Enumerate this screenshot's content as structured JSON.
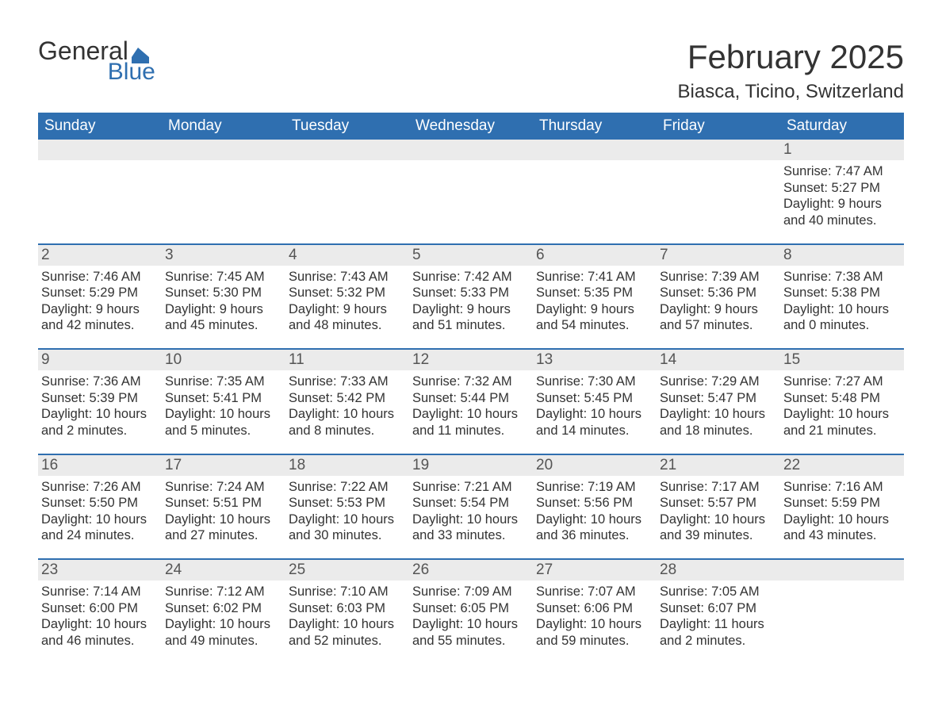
{
  "logo": {
    "word1": "General",
    "word2": "Blue",
    "brand_color": "#2f6fb0"
  },
  "title": "February 2025",
  "location": "Biasca, Ticino, Switzerland",
  "colors": {
    "header_bg": "#2f6fb0",
    "header_text": "#ffffff",
    "daynum_bg": "#ebebeb",
    "rule": "#2f6fb0",
    "body_text": "#333333"
  },
  "typography": {
    "title_fontsize": 42,
    "location_fontsize": 24,
    "dayhead_fontsize": 19,
    "daynum_fontsize": 19,
    "cell_fontsize": 16.5,
    "font_family": "Arial"
  },
  "day_headers": [
    "Sunday",
    "Monday",
    "Tuesday",
    "Wednesday",
    "Thursday",
    "Friday",
    "Saturday"
  ],
  "weeks": [
    [
      {
        "blank": true
      },
      {
        "blank": true
      },
      {
        "blank": true
      },
      {
        "blank": true
      },
      {
        "blank": true
      },
      {
        "blank": true
      },
      {
        "n": "1",
        "sunrise": "Sunrise: 7:47 AM",
        "sunset": "Sunset: 5:27 PM",
        "daylight": "Daylight: 9 hours and 40 minutes."
      }
    ],
    [
      {
        "n": "2",
        "sunrise": "Sunrise: 7:46 AM",
        "sunset": "Sunset: 5:29 PM",
        "daylight": "Daylight: 9 hours and 42 minutes."
      },
      {
        "n": "3",
        "sunrise": "Sunrise: 7:45 AM",
        "sunset": "Sunset: 5:30 PM",
        "daylight": "Daylight: 9 hours and 45 minutes."
      },
      {
        "n": "4",
        "sunrise": "Sunrise: 7:43 AM",
        "sunset": "Sunset: 5:32 PM",
        "daylight": "Daylight: 9 hours and 48 minutes."
      },
      {
        "n": "5",
        "sunrise": "Sunrise: 7:42 AM",
        "sunset": "Sunset: 5:33 PM",
        "daylight": "Daylight: 9 hours and 51 minutes."
      },
      {
        "n": "6",
        "sunrise": "Sunrise: 7:41 AM",
        "sunset": "Sunset: 5:35 PM",
        "daylight": "Daylight: 9 hours and 54 minutes."
      },
      {
        "n": "7",
        "sunrise": "Sunrise: 7:39 AM",
        "sunset": "Sunset: 5:36 PM",
        "daylight": "Daylight: 9 hours and 57 minutes."
      },
      {
        "n": "8",
        "sunrise": "Sunrise: 7:38 AM",
        "sunset": "Sunset: 5:38 PM",
        "daylight": "Daylight: 10 hours and 0 minutes."
      }
    ],
    [
      {
        "n": "9",
        "sunrise": "Sunrise: 7:36 AM",
        "sunset": "Sunset: 5:39 PM",
        "daylight": "Daylight: 10 hours and 2 minutes."
      },
      {
        "n": "10",
        "sunrise": "Sunrise: 7:35 AM",
        "sunset": "Sunset: 5:41 PM",
        "daylight": "Daylight: 10 hours and 5 minutes."
      },
      {
        "n": "11",
        "sunrise": "Sunrise: 7:33 AM",
        "sunset": "Sunset: 5:42 PM",
        "daylight": "Daylight: 10 hours and 8 minutes."
      },
      {
        "n": "12",
        "sunrise": "Sunrise: 7:32 AM",
        "sunset": "Sunset: 5:44 PM",
        "daylight": "Daylight: 10 hours and 11 minutes."
      },
      {
        "n": "13",
        "sunrise": "Sunrise: 7:30 AM",
        "sunset": "Sunset: 5:45 PM",
        "daylight": "Daylight: 10 hours and 14 minutes."
      },
      {
        "n": "14",
        "sunrise": "Sunrise: 7:29 AM",
        "sunset": "Sunset: 5:47 PM",
        "daylight": "Daylight: 10 hours and 18 minutes."
      },
      {
        "n": "15",
        "sunrise": "Sunrise: 7:27 AM",
        "sunset": "Sunset: 5:48 PM",
        "daylight": "Daylight: 10 hours and 21 minutes."
      }
    ],
    [
      {
        "n": "16",
        "sunrise": "Sunrise: 7:26 AM",
        "sunset": "Sunset: 5:50 PM",
        "daylight": "Daylight: 10 hours and 24 minutes."
      },
      {
        "n": "17",
        "sunrise": "Sunrise: 7:24 AM",
        "sunset": "Sunset: 5:51 PM",
        "daylight": "Daylight: 10 hours and 27 minutes."
      },
      {
        "n": "18",
        "sunrise": "Sunrise: 7:22 AM",
        "sunset": "Sunset: 5:53 PM",
        "daylight": "Daylight: 10 hours and 30 minutes."
      },
      {
        "n": "19",
        "sunrise": "Sunrise: 7:21 AM",
        "sunset": "Sunset: 5:54 PM",
        "daylight": "Daylight: 10 hours and 33 minutes."
      },
      {
        "n": "20",
        "sunrise": "Sunrise: 7:19 AM",
        "sunset": "Sunset: 5:56 PM",
        "daylight": "Daylight: 10 hours and 36 minutes."
      },
      {
        "n": "21",
        "sunrise": "Sunrise: 7:17 AM",
        "sunset": "Sunset: 5:57 PM",
        "daylight": "Daylight: 10 hours and 39 minutes."
      },
      {
        "n": "22",
        "sunrise": "Sunrise: 7:16 AM",
        "sunset": "Sunset: 5:59 PM",
        "daylight": "Daylight: 10 hours and 43 minutes."
      }
    ],
    [
      {
        "n": "23",
        "sunrise": "Sunrise: 7:14 AM",
        "sunset": "Sunset: 6:00 PM",
        "daylight": "Daylight: 10 hours and 46 minutes."
      },
      {
        "n": "24",
        "sunrise": "Sunrise: 7:12 AM",
        "sunset": "Sunset: 6:02 PM",
        "daylight": "Daylight: 10 hours and 49 minutes."
      },
      {
        "n": "25",
        "sunrise": "Sunrise: 7:10 AM",
        "sunset": "Sunset: 6:03 PM",
        "daylight": "Daylight: 10 hours and 52 minutes."
      },
      {
        "n": "26",
        "sunrise": "Sunrise: 7:09 AM",
        "sunset": "Sunset: 6:05 PM",
        "daylight": "Daylight: 10 hours and 55 minutes."
      },
      {
        "n": "27",
        "sunrise": "Sunrise: 7:07 AM",
        "sunset": "Sunset: 6:06 PM",
        "daylight": "Daylight: 10 hours and 59 minutes."
      },
      {
        "n": "28",
        "sunrise": "Sunrise: 7:05 AM",
        "sunset": "Sunset: 6:07 PM",
        "daylight": "Daylight: 11 hours and 2 minutes."
      },
      {
        "blank": true
      }
    ]
  ]
}
